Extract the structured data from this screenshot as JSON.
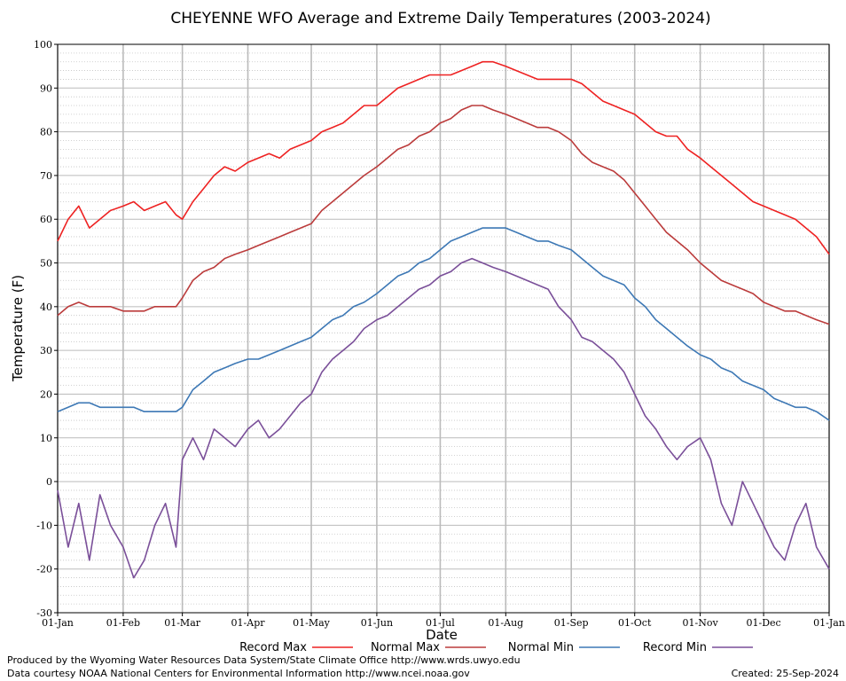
{
  "chart_data": {
    "type": "line",
    "title": "CHEYENNE WFO Average and Extreme Daily Temperatures (2003-2024)",
    "xlabel": "Date",
    "ylabel": "Temperature (F)",
    "ylim": [
      -30,
      100
    ],
    "yticks": [
      -30,
      -20,
      -10,
      0,
      10,
      20,
      30,
      40,
      50,
      60,
      70,
      80,
      90,
      100
    ],
    "xlim": [
      1,
      366
    ],
    "xtick_days": [
      1,
      32,
      60,
      91,
      121,
      152,
      182,
      213,
      244,
      274,
      305,
      335,
      366
    ],
    "xtick_labels": [
      "01-Jan",
      "01-Feb",
      "01-Mar",
      "01-Apr",
      "01-May",
      "01-Jun",
      "01-Jul",
      "01-Aug",
      "01-Sep",
      "01-Oct",
      "01-Nov",
      "01-Dec",
      "01-Jan"
    ],
    "grid": true,
    "series": [
      {
        "name": "Record Max",
        "color": "#ee2222",
        "x": [
          1,
          6,
          11,
          16,
          21,
          26,
          32,
          37,
          42,
          47,
          52,
          57,
          60,
          65,
          70,
          75,
          80,
          85,
          91,
          96,
          101,
          106,
          111,
          116,
          121,
          126,
          131,
          136,
          141,
          146,
          152,
          157,
          162,
          167,
          172,
          177,
          182,
          187,
          192,
          197,
          202,
          207,
          213,
          218,
          223,
          228,
          233,
          238,
          244,
          249,
          254,
          259,
          264,
          269,
          274,
          279,
          284,
          289,
          294,
          299,
          305,
          310,
          315,
          320,
          325,
          330,
          335,
          340,
          345,
          350,
          355,
          360,
          366
        ],
        "y": [
          55,
          60,
          63,
          58,
          60,
          62,
          63,
          64,
          62,
          63,
          64,
          61,
          60,
          64,
          67,
          70,
          72,
          71,
          73,
          74,
          75,
          74,
          76,
          77,
          78,
          80,
          81,
          82,
          84,
          86,
          86,
          88,
          90,
          91,
          92,
          93,
          93,
          93,
          94,
          95,
          96,
          96,
          95,
          94,
          93,
          92,
          92,
          92,
          92,
          91,
          89,
          87,
          86,
          85,
          84,
          82,
          80,
          79,
          79,
          76,
          74,
          72,
          70,
          68,
          66,
          64,
          63,
          62,
          61,
          60,
          58,
          56,
          52
        ]
      },
      {
        "name": "Normal Max",
        "color": "#bb3b3b",
        "x": [
          1,
          6,
          11,
          16,
          21,
          26,
          32,
          37,
          42,
          47,
          52,
          57,
          60,
          65,
          70,
          75,
          80,
          85,
          91,
          96,
          101,
          106,
          111,
          116,
          121,
          126,
          131,
          136,
          141,
          146,
          152,
          157,
          162,
          167,
          172,
          177,
          182,
          187,
          192,
          197,
          202,
          207,
          213,
          218,
          223,
          228,
          233,
          238,
          244,
          249,
          254,
          259,
          264,
          269,
          274,
          279,
          284,
          289,
          294,
          299,
          305,
          310,
          315,
          320,
          325,
          330,
          335,
          340,
          345,
          350,
          355,
          360,
          366
        ],
        "y": [
          38,
          40,
          41,
          40,
          40,
          40,
          39,
          39,
          39,
          40,
          40,
          40,
          42,
          46,
          48,
          49,
          51,
          52,
          53,
          54,
          55,
          56,
          57,
          58,
          59,
          62,
          64,
          66,
          68,
          70,
          72,
          74,
          76,
          77,
          79,
          80,
          82,
          83,
          85,
          86,
          86,
          85,
          84,
          83,
          82,
          81,
          81,
          80,
          78,
          75,
          73,
          72,
          71,
          69,
          66,
          63,
          60,
          57,
          55,
          53,
          50,
          48,
          46,
          45,
          44,
          43,
          41,
          40,
          39,
          39,
          38,
          37,
          36
        ]
      },
      {
        "name": "Normal Min",
        "color": "#3d78b5",
        "x": [
          1,
          6,
          11,
          16,
          21,
          26,
          32,
          37,
          42,
          47,
          52,
          57,
          60,
          65,
          70,
          75,
          80,
          85,
          91,
          96,
          101,
          106,
          111,
          116,
          121,
          126,
          131,
          136,
          141,
          146,
          152,
          157,
          162,
          167,
          172,
          177,
          182,
          187,
          192,
          197,
          202,
          207,
          213,
          218,
          223,
          228,
          233,
          238,
          244,
          249,
          254,
          259,
          264,
          269,
          274,
          279,
          284,
          289,
          294,
          299,
          305,
          310,
          315,
          320,
          325,
          330,
          335,
          340,
          345,
          350,
          355,
          360,
          366
        ],
        "y": [
          16,
          17,
          18,
          18,
          17,
          17,
          17,
          17,
          16,
          16,
          16,
          16,
          17,
          21,
          23,
          25,
          26,
          27,
          28,
          28,
          29,
          30,
          31,
          32,
          33,
          35,
          37,
          38,
          40,
          41,
          43,
          45,
          47,
          48,
          50,
          51,
          53,
          55,
          56,
          57,
          58,
          58,
          58,
          57,
          56,
          55,
          55,
          54,
          53,
          51,
          49,
          47,
          46,
          45,
          42,
          40,
          37,
          35,
          33,
          31,
          29,
          28,
          26,
          25,
          23,
          22,
          21,
          19,
          18,
          17,
          17,
          16,
          14
        ]
      },
      {
        "name": "Record Min",
        "color": "#7a4f99",
        "x": [
          1,
          6,
          11,
          16,
          21,
          26,
          32,
          37,
          42,
          47,
          52,
          57,
          60,
          65,
          70,
          75,
          80,
          85,
          91,
          96,
          101,
          106,
          111,
          116,
          121,
          126,
          131,
          136,
          141,
          146,
          152,
          157,
          162,
          167,
          172,
          177,
          182,
          187,
          192,
          197,
          202,
          207,
          213,
          218,
          223,
          228,
          233,
          238,
          244,
          249,
          254,
          259,
          264,
          269,
          274,
          279,
          284,
          289,
          294,
          299,
          305,
          310,
          315,
          320,
          325,
          330,
          335,
          340,
          345,
          350,
          355,
          360,
          366
        ],
        "y": [
          -2,
          -15,
          -5,
          -18,
          -3,
          -10,
          -15,
          -22,
          -18,
          -10,
          -5,
          -15,
          5,
          10,
          5,
          12,
          10,
          8,
          12,
          14,
          10,
          12,
          15,
          18,
          20,
          25,
          28,
          30,
          32,
          35,
          37,
          38,
          40,
          42,
          44,
          45,
          47,
          48,
          50,
          51,
          50,
          49,
          48,
          47,
          46,
          45,
          44,
          40,
          37,
          33,
          32,
          30,
          28,
          25,
          20,
          15,
          12,
          8,
          5,
          8,
          10,
          5,
          -5,
          -10,
          0,
          -5,
          -10,
          -15,
          -18,
          -10,
          -5,
          -15,
          -20
        ]
      }
    ],
    "footer_left": [
      "Produced by the Wyoming Water Resources Data System/State Climate Office http://www.wrds.uwyo.edu",
      "Data courtesy NOAA National Centers for Environmental Information http://www.ncei.noaa.gov"
    ],
    "footer_right": "Created: 25-Sep-2024"
  }
}
